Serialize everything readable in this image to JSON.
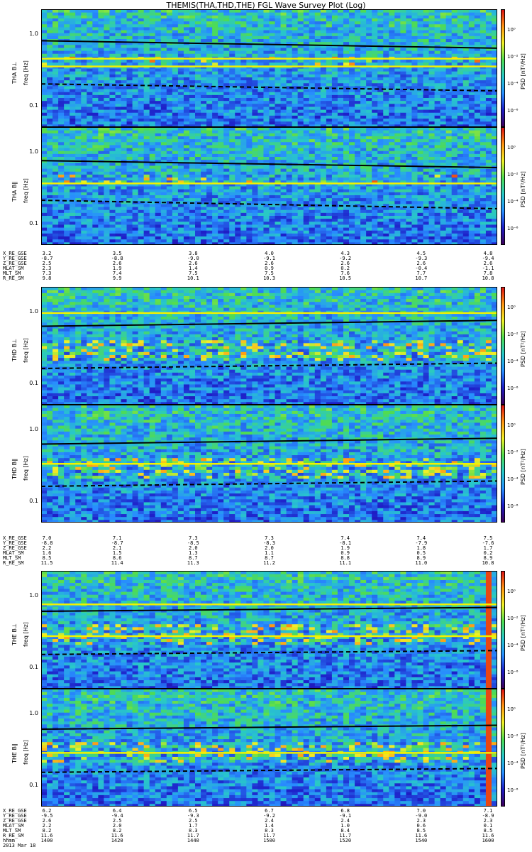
{
  "title": "THEMIS(THA,THD,THE) FGL Wave Survey Plot (Log)",
  "colorbar": {
    "label": "PSD [nT²/Hz]",
    "ticks": [
      "10⁰",
      "10⁻²",
      "10⁻⁴",
      "10⁻⁶"
    ]
  },
  "panel_y_ticks": [
    "1.0",
    "0.1"
  ],
  "chart_data": [
    {
      "type": "heatmap",
      "probe": "THA",
      "panels": [
        {
          "ylabel": "THA B⊥",
          "yunit": "freq [Hz]",
          "line_solid": [
            0.8,
            0.63
          ],
          "line_dashed": [
            0.2,
            0.16
          ],
          "bands": [
            0.45,
            0.35
          ]
        },
        {
          "ylabel": "THA B∥",
          "yunit": "freq [Hz]",
          "line_solid": [
            0.75,
            0.6
          ],
          "line_dashed": [
            0.21,
            0.16
          ],
          "bands": [
            0.36
          ]
        }
      ],
      "ephemeris": {
        "labels": [
          "X_RE_GSE",
          "Y_RE_GSE",
          "Z_RE_GSE",
          "MLAT_SM",
          "MLT_SM",
          "R_RE_SM"
        ],
        "rows": [
          [
            "3.2",
            "3.5",
            "3.8",
            "4.0",
            "4.3",
            "4.5",
            "4.8"
          ],
          [
            "-8.7",
            "-8.8",
            "-9.0",
            "-9.1",
            "-9.2",
            "-9.3",
            "-9.4"
          ],
          [
            "2.5",
            "2.6",
            "2.6",
            "2.6",
            "2.6",
            "2.6",
            "2.6"
          ],
          [
            "2.3",
            "1.9",
            "1.4",
            "0.9",
            "0.2",
            "-0.4",
            "-1.1"
          ],
          [
            "7.3",
            "7.4",
            "7.5",
            "7.5",
            "7.6",
            "7.7",
            "7.8"
          ],
          [
            "9.8",
            "9.9",
            "10.1",
            "10.3",
            "10.5",
            "10.7",
            "10.8"
          ]
        ]
      }
    },
    {
      "type": "heatmap",
      "probe": "THD",
      "panels": [
        {
          "ylabel": "THD B⊥",
          "yunit": "freq [Hz]",
          "line_solid": [
            0.62,
            0.75
          ],
          "line_dashed": [
            0.16,
            0.19
          ],
          "bands": [
            0.95
          ]
        },
        {
          "ylabel": "THD B∥",
          "yunit": "freq [Hz]",
          "line_solid": [
            0.62,
            0.75
          ],
          "line_dashed": [
            0.16,
            0.19
          ],
          "bands": [
            0.33
          ]
        }
      ],
      "ephemeris": {
        "labels": [
          "X_RE_GSE",
          "Y_RE_GSE",
          "Z_RE_GSE",
          "MLAT_SM",
          "MLT_SM",
          "R_RE_SM"
        ],
        "rows": [
          [
            "7.0",
            "7.1",
            "7.3",
            "7.3",
            "7.4",
            "7.4",
            "7.5"
          ],
          [
            "-8.8",
            "-8.7",
            "-8.5",
            "-8.3",
            "-8.1",
            "-7.9",
            "-7.6"
          ],
          [
            "2.2",
            "2.1",
            "2.0",
            "2.0",
            "1.9",
            "1.8",
            "1.7"
          ],
          [
            "1.6",
            "1.5",
            "1.3",
            "1.1",
            "0.9",
            "0.5",
            "0.2"
          ],
          [
            "8.5",
            "8.6",
            "8.7",
            "8.7",
            "8.8",
            "8.9",
            "8.9"
          ],
          [
            "11.5",
            "11.4",
            "11.3",
            "11.2",
            "11.1",
            "11.0",
            "10.8"
          ]
        ]
      }
    },
    {
      "type": "heatmap",
      "probe": "THE",
      "panels": [
        {
          "ylabel": "THE B⊥",
          "yunit": "freq [Hz]",
          "line_solid": [
            0.6,
            0.68
          ],
          "line_dashed": [
            0.15,
            0.17
          ],
          "bands": [
            0.75,
            0.27
          ]
        },
        {
          "ylabel": "THE B∥",
          "yunit": "freq [Hz]",
          "line_solid": [
            0.6,
            0.68
          ],
          "line_dashed": [
            0.15,
            0.17
          ],
          "bands": [
            0.28
          ]
        }
      ],
      "ephemeris": {
        "labels": [
          "X_RE_GSE",
          "Y_RE_GSE",
          "Z_RE_GSE",
          "MLAT_SM",
          "MLT_SM",
          "R_RE_SM",
          "hhmm",
          "2013 Mar 18"
        ],
        "rows": [
          [
            "6.2",
            "6.4",
            "6.5",
            "6.7",
            "6.8",
            "7.0",
            "7.1"
          ],
          [
            "-9.5",
            "-9.4",
            "-9.3",
            "-9.2",
            "-9.1",
            "-9.0",
            "-8.9"
          ],
          [
            "2.6",
            "2.5",
            "2.5",
            "2.4",
            "2.4",
            "2.3",
            "2.3"
          ],
          [
            "2.2",
            "2.0",
            "1.7",
            "1.4",
            "1.0",
            "0.6",
            "0.1"
          ],
          [
            "8.2",
            "8.2",
            "8.3",
            "8.3",
            "8.4",
            "8.5",
            "8.5"
          ],
          [
            "11.6",
            "11.6",
            "11.7",
            "11.7",
            "11.7",
            "11.6",
            "11.6"
          ],
          [
            "1400",
            "1420",
            "1440",
            "1500",
            "1520",
            "1540",
            "1600"
          ]
        ]
      }
    }
  ]
}
